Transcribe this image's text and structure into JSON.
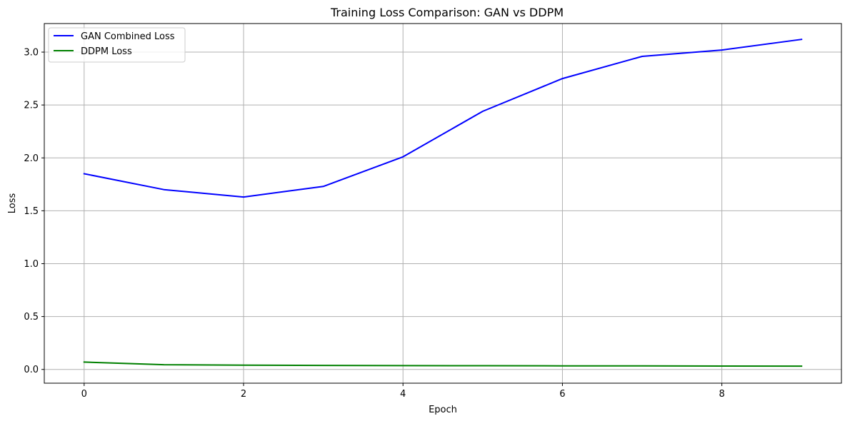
{
  "chart_data": {
    "type": "line",
    "title": "Training Loss Comparison: GAN vs DDPM",
    "xlabel": "Epoch",
    "ylabel": "Loss",
    "x": [
      0,
      1,
      2,
      3,
      4,
      5,
      6,
      7,
      8,
      9
    ],
    "xlim": [
      -0.5,
      9.5
    ],
    "ylim": [
      -0.13,
      3.27
    ],
    "xticks": [
      0,
      2,
      4,
      6,
      8
    ],
    "yticks": [
      0.0,
      0.5,
      1.0,
      1.5,
      2.0,
      2.5,
      3.0
    ],
    "xtick_labels": [
      "0",
      "2",
      "4",
      "6",
      "8"
    ],
    "ytick_labels": [
      "0.0",
      "0.5",
      "1.0",
      "1.5",
      "2.0",
      "2.5",
      "3.0"
    ],
    "grid": true,
    "legend_position": "top-left",
    "series": [
      {
        "name": "GAN Combined Loss",
        "color": "#0000ff",
        "values": [
          1.85,
          1.7,
          1.63,
          1.73,
          2.01,
          2.44,
          2.75,
          2.96,
          3.02,
          3.12
        ]
      },
      {
        "name": "DDPM Loss",
        "color": "#008000",
        "values": [
          0.07,
          0.045,
          0.04,
          0.038,
          0.036,
          0.035,
          0.034,
          0.033,
          0.032,
          0.031
        ]
      }
    ]
  }
}
